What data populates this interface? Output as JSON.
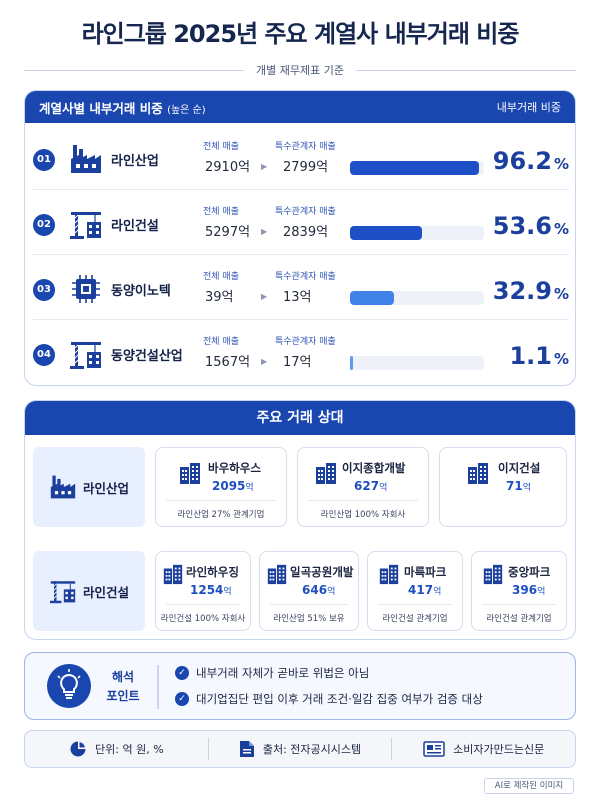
{
  "title": "라인그룹 2025년 주요 계열사 내부거래 비중",
  "subtitle": "개별 재무제표 기준",
  "section1": {
    "title": "계열사별 내부거래 비중",
    "title_suffix": "(높은 순)",
    "right_label": "내부거래 비중",
    "total_sales_label": "전체 매출",
    "related_sales_label": "특수관계자 매출"
  },
  "chart_data": {
    "type": "bar",
    "categories": [
      "라인산업",
      "라인건설",
      "동양이노텍",
      "동양건설산업"
    ],
    "ranks": [
      "01",
      "02",
      "03",
      "04"
    ],
    "total_sales": [
      "2910억",
      "5297억",
      "39억",
      "1567억"
    ],
    "related_sales": [
      "2799억",
      "2839억",
      "13억",
      "17억"
    ],
    "values": [
      96.2,
      53.6,
      32.9,
      1.1
    ],
    "value_labels": [
      "96.2",
      "53.6",
      "32.9",
      "1.1"
    ],
    "unit": "%",
    "ylim": [
      0,
      100
    ],
    "bar_colors": [
      "#1f4fc6",
      "#1f4fc6",
      "#3f82e8",
      "#5c9cf0"
    ],
    "icons": [
      "factory-icon",
      "crane-icon",
      "chip-icon",
      "crane-icon"
    ]
  },
  "section2": {
    "title": "주요 거래 상대",
    "groups": [
      {
        "label": "라인산업",
        "icon": "factory-icon",
        "partners": [
          {
            "name": "바우하우스",
            "amount": "2095",
            "unit": "억",
            "note": "라인산업 27% 관계기업"
          },
          {
            "name": "이지종합개발",
            "amount": "627",
            "unit": "억",
            "note": "라인산업 100% 자회사"
          },
          {
            "name": "이지건설",
            "amount": "71",
            "unit": "억",
            "note": ""
          }
        ]
      },
      {
        "label": "라인건설",
        "icon": "crane-icon",
        "partners": [
          {
            "name": "라인하우징",
            "amount": "1254",
            "unit": "억",
            "note": "라인건설 100% 자회사"
          },
          {
            "name": "일곡공원개발",
            "amount": "646",
            "unit": "억",
            "note": "라인산업 51% 보유"
          },
          {
            "name": "마륵파크",
            "amount": "417",
            "unit": "억",
            "note": "라인건설 관계기업"
          },
          {
            "name": "중앙파크",
            "amount": "396",
            "unit": "억",
            "note": "라인건설 관계기업"
          }
        ]
      }
    ]
  },
  "section3": {
    "label_line1": "해석",
    "label_line2": "포인트",
    "points": [
      "내부거래 자체가 곧바로 위법은 아님",
      "대기업집단 편입 이후 거래 조건·일감 집중 여부가 검증 대상"
    ]
  },
  "footer": {
    "unit": "단위: 억 원, %",
    "source": "출처: 전자공시시스템",
    "publisher": "소비자가만드는신문"
  },
  "ai_note": "AI로 제작된 이미지"
}
